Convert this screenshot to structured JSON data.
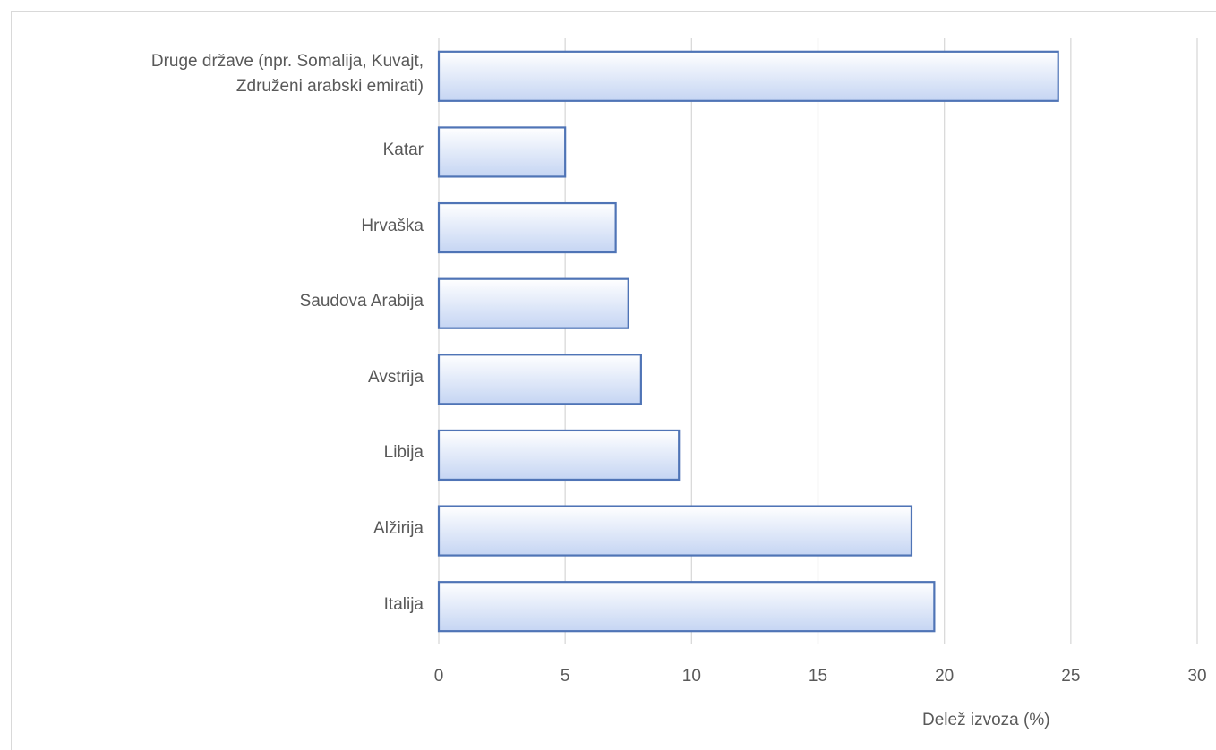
{
  "chart_data": {
    "type": "bar",
    "orientation": "horizontal",
    "categories": [
      "Druge države (npr. Somalija, Kuvajt, Združeni arabski emirati)",
      "Katar",
      "Hrvaška",
      "Saudova Arabija",
      "Avstrija",
      "Libija",
      "Alžirija",
      "Italija"
    ],
    "category_label_lines": [
      [
        "Druge države (npr. Somalija, Kuvajt,",
        "Združeni arabski emirati)"
      ],
      [
        "Katar"
      ],
      [
        "Hrvaška"
      ],
      [
        "Saudova Arabija"
      ],
      [
        "Avstrija"
      ],
      [
        "Libija"
      ],
      [
        "Alžirija"
      ],
      [
        "Italija"
      ]
    ],
    "values": [
      24.5,
      5.0,
      7.0,
      7.5,
      8.0,
      9.5,
      18.7,
      19.6
    ],
    "xlabel": "Delež izvoza (%)",
    "ylabel": "",
    "xlim": [
      0,
      30
    ],
    "xticks": [
      0,
      5,
      10,
      15,
      20,
      25,
      30
    ],
    "grid": true,
    "legend": "none",
    "colors": {
      "bar_fill_light": "#ffffff",
      "bar_fill_dark": "#c5d5f3",
      "bar_border": "#4f74b6",
      "gridline": "#d9d9d9",
      "text": "#595959"
    }
  }
}
